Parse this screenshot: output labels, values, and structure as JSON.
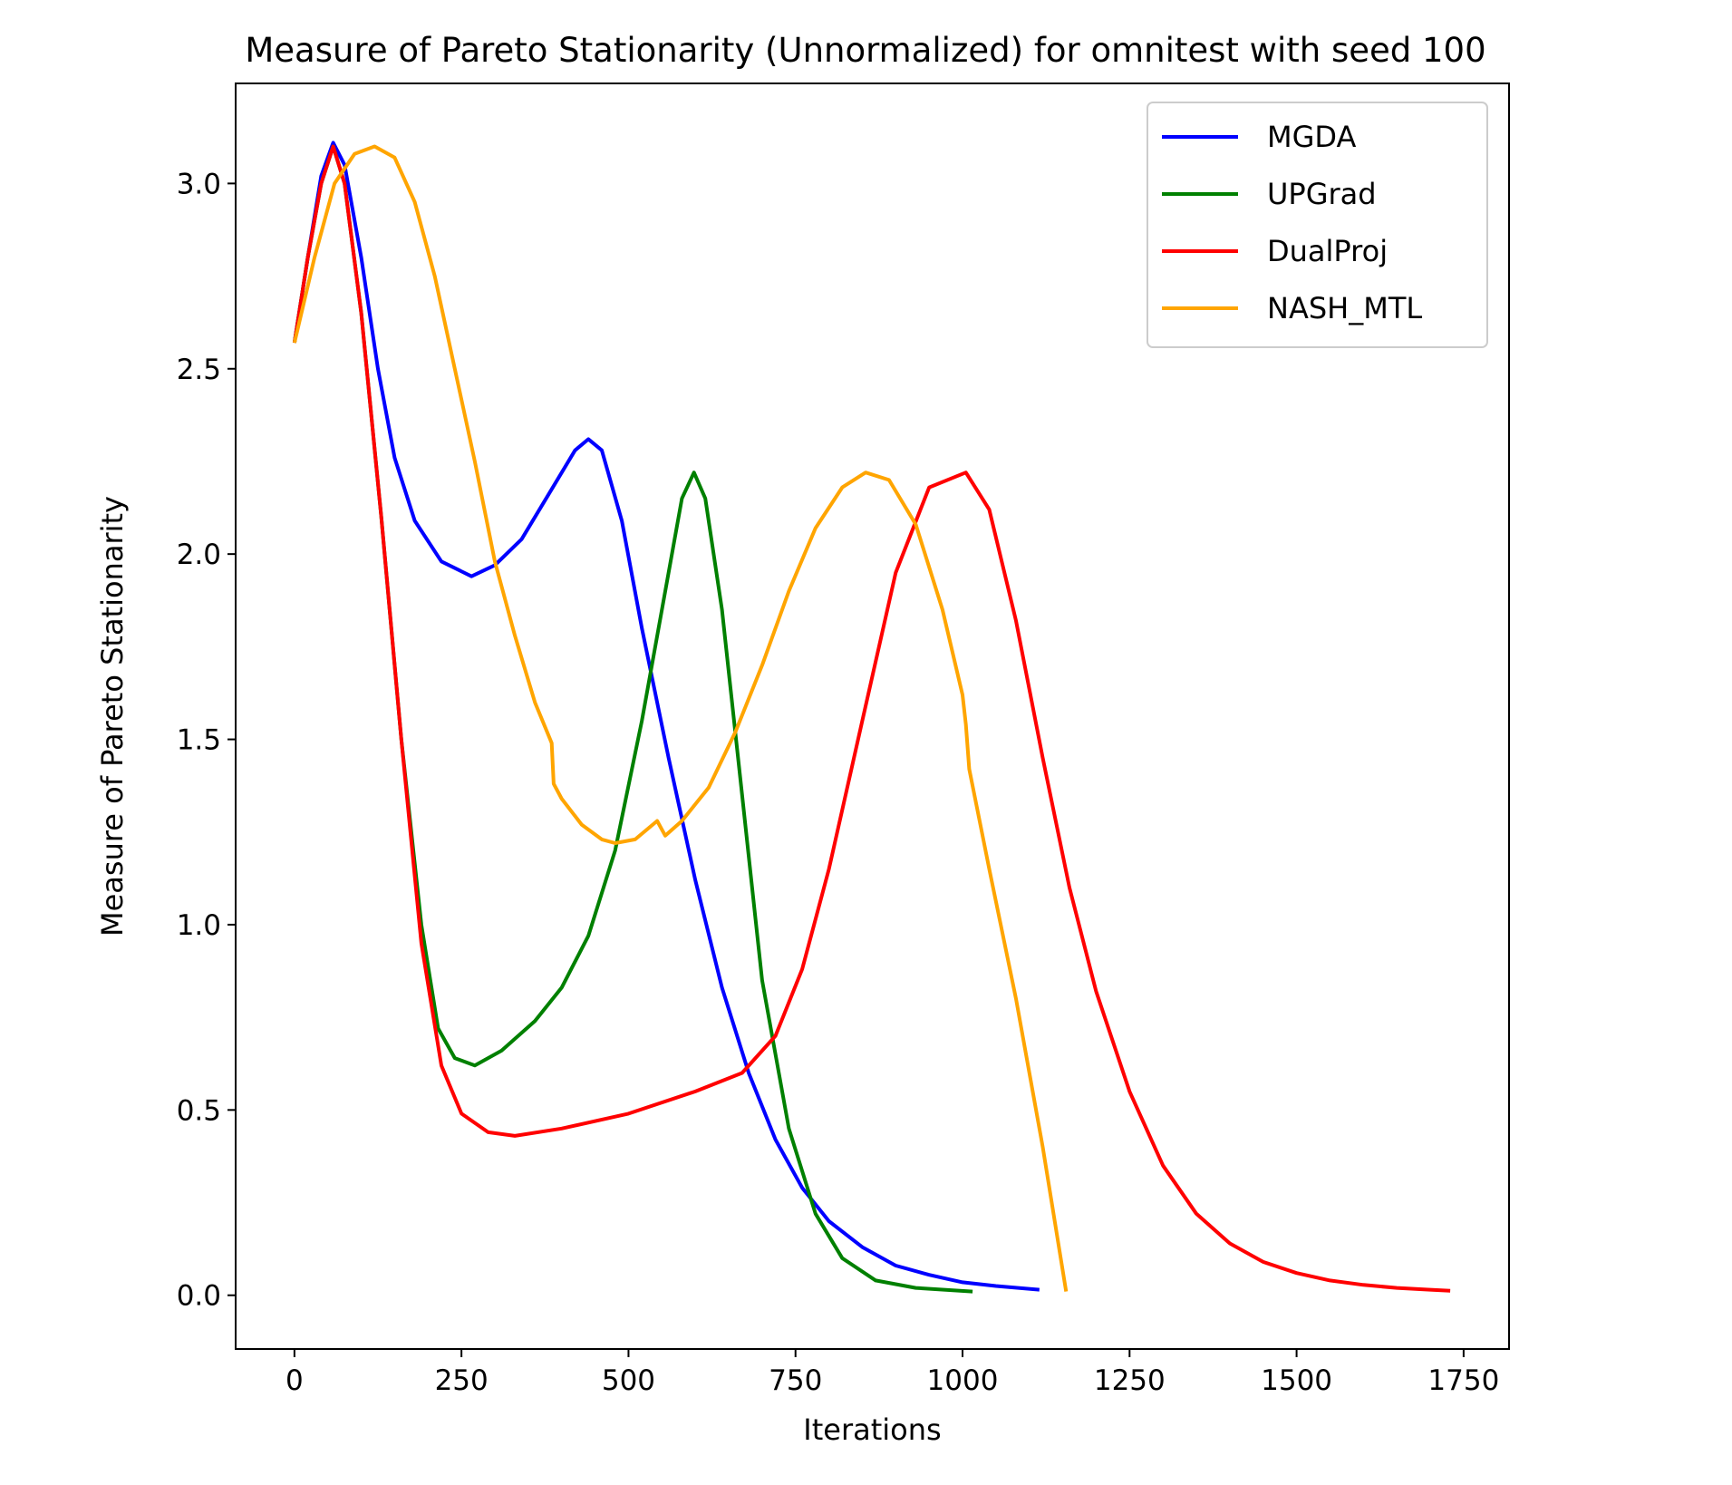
{
  "chart_data": {
    "type": "line",
    "title": "Measure of Pareto Stationarity (Unnormalized) for omnitest with seed 100",
    "xlabel": "Iterations",
    "ylabel": "Measure of Pareto Stationarity",
    "xlim": [
      -88,
      1818
    ],
    "ylim": [
      -0.145,
      3.27
    ],
    "xticks": [
      0,
      250,
      500,
      750,
      1000,
      1250,
      1500,
      1750
    ],
    "xtick_labels": [
      "0",
      "250",
      "500",
      "750",
      "1000",
      "1250",
      "1500",
      "1750"
    ],
    "yticks": [
      0.0,
      0.5,
      1.0,
      1.5,
      2.0,
      2.5,
      3.0
    ],
    "ytick_labels": [
      "0.0",
      "0.5",
      "1.0",
      "1.5",
      "2.0",
      "2.5",
      "3.0"
    ],
    "grid": false,
    "legend_position": "upper right",
    "series": [
      {
        "name": "MGDA",
        "color": "#0000ff",
        "points": [
          [
            0,
            2.57
          ],
          [
            20,
            2.8
          ],
          [
            40,
            3.02
          ],
          [
            58,
            3.11
          ],
          [
            75,
            3.05
          ],
          [
            100,
            2.8
          ],
          [
            125,
            2.5
          ],
          [
            150,
            2.26
          ],
          [
            180,
            2.09
          ],
          [
            220,
            1.98
          ],
          [
            265,
            1.94
          ],
          [
            300,
            1.97
          ],
          [
            340,
            2.04
          ],
          [
            380,
            2.16
          ],
          [
            420,
            2.28
          ],
          [
            440,
            2.31
          ],
          [
            460,
            2.28
          ],
          [
            490,
            2.09
          ],
          [
            520,
            1.8
          ],
          [
            560,
            1.45
          ],
          [
            600,
            1.12
          ],
          [
            640,
            0.83
          ],
          [
            680,
            0.6
          ],
          [
            720,
            0.42
          ],
          [
            760,
            0.29
          ],
          [
            800,
            0.2
          ],
          [
            850,
            0.13
          ],
          [
            900,
            0.08
          ],
          [
            950,
            0.055
          ],
          [
            1000,
            0.035
          ],
          [
            1050,
            0.025
          ],
          [
            1115,
            0.015
          ]
        ]
      },
      {
        "name": "UPGrad",
        "color": "#008000",
        "points": [
          [
            0,
            2.57
          ],
          [
            20,
            2.8
          ],
          [
            40,
            3.0
          ],
          [
            58,
            3.1
          ],
          [
            75,
            3.0
          ],
          [
            100,
            2.65
          ],
          [
            130,
            2.1
          ],
          [
            160,
            1.5
          ],
          [
            190,
            1.0
          ],
          [
            215,
            0.72
          ],
          [
            240,
            0.64
          ],
          [
            270,
            0.62
          ],
          [
            310,
            0.66
          ],
          [
            360,
            0.74
          ],
          [
            400,
            0.83
          ],
          [
            440,
            0.97
          ],
          [
            480,
            1.2
          ],
          [
            520,
            1.55
          ],
          [
            560,
            1.95
          ],
          [
            580,
            2.15
          ],
          [
            598,
            2.22
          ],
          [
            615,
            2.15
          ],
          [
            640,
            1.85
          ],
          [
            670,
            1.35
          ],
          [
            700,
            0.85
          ],
          [
            740,
            0.45
          ],
          [
            780,
            0.22
          ],
          [
            820,
            0.1
          ],
          [
            870,
            0.04
          ],
          [
            930,
            0.02
          ],
          [
            1015,
            0.01
          ]
        ]
      },
      {
        "name": "DualProj",
        "color": "#ff0000",
        "points": [
          [
            0,
            2.57
          ],
          [
            20,
            2.8
          ],
          [
            40,
            3.0
          ],
          [
            58,
            3.1
          ],
          [
            75,
            3.0
          ],
          [
            100,
            2.65
          ],
          [
            130,
            2.1
          ],
          [
            160,
            1.5
          ],
          [
            190,
            0.95
          ],
          [
            220,
            0.62
          ],
          [
            250,
            0.49
          ],
          [
            290,
            0.44
          ],
          [
            330,
            0.43
          ],
          [
            400,
            0.45
          ],
          [
            500,
            0.49
          ],
          [
            600,
            0.55
          ],
          [
            670,
            0.6
          ],
          [
            720,
            0.7
          ],
          [
            760,
            0.88
          ],
          [
            800,
            1.15
          ],
          [
            850,
            1.55
          ],
          [
            900,
            1.95
          ],
          [
            950,
            2.18
          ],
          [
            1005,
            2.22
          ],
          [
            1040,
            2.12
          ],
          [
            1080,
            1.82
          ],
          [
            1120,
            1.45
          ],
          [
            1160,
            1.1
          ],
          [
            1200,
            0.82
          ],
          [
            1250,
            0.55
          ],
          [
            1300,
            0.35
          ],
          [
            1350,
            0.22
          ],
          [
            1400,
            0.14
          ],
          [
            1450,
            0.09
          ],
          [
            1500,
            0.06
          ],
          [
            1550,
            0.04
          ],
          [
            1600,
            0.028
          ],
          [
            1650,
            0.02
          ],
          [
            1700,
            0.015
          ],
          [
            1730,
            0.012
          ]
        ]
      },
      {
        "name": "NASH_MTL",
        "color": "#ffa500",
        "points": [
          [
            0,
            2.57
          ],
          [
            30,
            2.8
          ],
          [
            60,
            3.0
          ],
          [
            90,
            3.08
          ],
          [
            120,
            3.1
          ],
          [
            150,
            3.07
          ],
          [
            180,
            2.95
          ],
          [
            210,
            2.75
          ],
          [
            240,
            2.5
          ],
          [
            270,
            2.25
          ],
          [
            300,
            1.98
          ],
          [
            330,
            1.78
          ],
          [
            360,
            1.6
          ],
          [
            385,
            1.49
          ],
          [
            388,
            1.38
          ],
          [
            400,
            1.34
          ],
          [
            430,
            1.27
          ],
          [
            460,
            1.23
          ],
          [
            480,
            1.22
          ],
          [
            510,
            1.23
          ],
          [
            543,
            1.28
          ],
          [
            555,
            1.24
          ],
          [
            580,
            1.28
          ],
          [
            620,
            1.37
          ],
          [
            660,
            1.52
          ],
          [
            700,
            1.7
          ],
          [
            740,
            1.9
          ],
          [
            780,
            2.07
          ],
          [
            820,
            2.18
          ],
          [
            855,
            2.22
          ],
          [
            890,
            2.2
          ],
          [
            930,
            2.08
          ],
          [
            970,
            1.85
          ],
          [
            1000,
            1.62
          ],
          [
            1005,
            1.54
          ],
          [
            1010,
            1.42
          ],
          [
            1040,
            1.15
          ],
          [
            1080,
            0.8
          ],
          [
            1120,
            0.4
          ],
          [
            1155,
            0.01
          ]
        ]
      }
    ]
  }
}
